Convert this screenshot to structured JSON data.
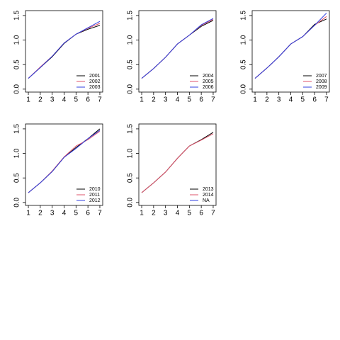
{
  "chart_data": [
    {
      "type": "line",
      "x": [
        1,
        2,
        3,
        4,
        5,
        6,
        7
      ],
      "xlim": [
        0.76,
        7.24
      ],
      "ylim": [
        -0.06,
        1.6
      ],
      "xticks": [
        1,
        2,
        3,
        4,
        5,
        6,
        7
      ],
      "yticks": [
        {
          "value": 0,
          "label": "0.0"
        },
        {
          "value": 0.5,
          "label": "0.5"
        },
        {
          "value": 1,
          "label": "1.0"
        },
        {
          "value": 1.5,
          "label": "1.5"
        }
      ],
      "legend": "bottom right",
      "series": [
        {
          "name": "2001",
          "color": "#000000",
          "values": [
            0.22,
            0.44,
            0.66,
            0.93,
            1.12,
            1.22,
            1.3
          ]
        },
        {
          "name": "2002",
          "color": "#df536b",
          "values": [
            0.22,
            0.45,
            0.67,
            0.94,
            1.12,
            1.24,
            1.34
          ]
        },
        {
          "name": "2003",
          "color": "#2f3fe0",
          "values": [
            0.22,
            0.44,
            0.67,
            0.94,
            1.12,
            1.25,
            1.38
          ]
        }
      ]
    },
    {
      "type": "line",
      "x": [
        1,
        2,
        3,
        4,
        5,
        6,
        7
      ],
      "xlim": [
        0.76,
        7.24
      ],
      "ylim": [
        -0.06,
        1.6
      ],
      "xticks": [
        1,
        2,
        3,
        4,
        5,
        6,
        7
      ],
      "yticks": [
        {
          "value": 0,
          "label": "0.0"
        },
        {
          "value": 0.5,
          "label": "0.5"
        },
        {
          "value": 1,
          "label": "1.0"
        },
        {
          "value": 1.5,
          "label": "1.5"
        }
      ],
      "legend": "bottom right",
      "series": [
        {
          "name": "2004",
          "color": "#000000",
          "values": [
            0.22,
            0.42,
            0.65,
            0.92,
            1.1,
            1.28,
            1.4
          ]
        },
        {
          "name": "2005",
          "color": "#df536b",
          "values": [
            0.22,
            0.42,
            0.65,
            0.92,
            1.1,
            1.3,
            1.42
          ]
        },
        {
          "name": "2006",
          "color": "#2f3fe0",
          "values": [
            0.22,
            0.42,
            0.65,
            0.92,
            1.1,
            1.31,
            1.44
          ]
        }
      ]
    },
    {
      "type": "line",
      "x": [
        1,
        2,
        3,
        4,
        5,
        6,
        7
      ],
      "xlim": [
        0.76,
        7.24
      ],
      "ylim": [
        -0.06,
        1.6
      ],
      "xticks": [
        1,
        2,
        3,
        4,
        5,
        6,
        7
      ],
      "yticks": [
        {
          "value": 0,
          "label": "0.0"
        },
        {
          "value": 0.5,
          "label": "0.5"
        },
        {
          "value": 1,
          "label": "1.0"
        },
        {
          "value": 1.5,
          "label": "1.5"
        }
      ],
      "legend": "bottom right",
      "series": [
        {
          "name": "2007",
          "color": "#000000",
          "values": [
            0.22,
            0.43,
            0.66,
            0.92,
            1.07,
            1.32,
            1.43
          ]
        },
        {
          "name": "2008",
          "color": "#df536b",
          "values": [
            0.22,
            0.43,
            0.66,
            0.92,
            1.07,
            1.3,
            1.48
          ]
        },
        {
          "name": "2009",
          "color": "#2f3fe0",
          "values": [
            0.22,
            0.43,
            0.66,
            0.92,
            1.07,
            1.3,
            1.55
          ]
        }
      ]
    },
    {
      "type": "line",
      "x": [
        1,
        2,
        3,
        4,
        5,
        6,
        7
      ],
      "xlim": [
        0.76,
        7.24
      ],
      "ylim": [
        -0.06,
        1.6
      ],
      "xticks": [
        1,
        2,
        3,
        4,
        5,
        6,
        7
      ],
      "yticks": [
        {
          "value": 0,
          "label": "0.0"
        },
        {
          "value": 0.5,
          "label": "0.5"
        },
        {
          "value": 1,
          "label": "1.0"
        },
        {
          "value": 1.5,
          "label": "1.5"
        }
      ],
      "legend": "bottom right",
      "series": [
        {
          "name": "2010",
          "color": "#000000",
          "values": [
            0.2,
            0.4,
            0.63,
            0.92,
            1.12,
            1.3,
            1.5
          ]
        },
        {
          "name": "2011",
          "color": "#df536b",
          "values": [
            0.2,
            0.4,
            0.64,
            0.93,
            1.15,
            1.28,
            1.45
          ]
        },
        {
          "name": "2012",
          "color": "#2f3fe0",
          "values": [
            0.2,
            0.4,
            0.63,
            0.92,
            1.1,
            1.3,
            1.47
          ]
        }
      ]
    },
    {
      "type": "line",
      "x": [
        1,
        2,
        3,
        4,
        5,
        6,
        7
      ],
      "xlim": [
        0.76,
        7.24
      ],
      "ylim": [
        -0.06,
        1.6
      ],
      "xticks": [
        1,
        2,
        3,
        4,
        5,
        6,
        7
      ],
      "yticks": [
        {
          "value": 0,
          "label": "0.0"
        },
        {
          "value": 0.5,
          "label": "0.5"
        },
        {
          "value": 1,
          "label": "1.0"
        },
        {
          "value": 1.5,
          "label": "1.5"
        }
      ],
      "legend": "bottom right",
      "series": [
        {
          "name": "2013",
          "color": "#000000",
          "values": [
            0.2,
            0.4,
            0.62,
            0.9,
            1.15,
            1.28,
            1.43
          ]
        },
        {
          "name": "2014",
          "color": "#df536b",
          "values": [
            0.2,
            0.4,
            0.62,
            0.9,
            1.15,
            1.27,
            1.4
          ]
        },
        {
          "name": "NA",
          "color": "#2f3fe0",
          "values": [
            null,
            null,
            null,
            null,
            null,
            null,
            null
          ]
        }
      ]
    }
  ]
}
